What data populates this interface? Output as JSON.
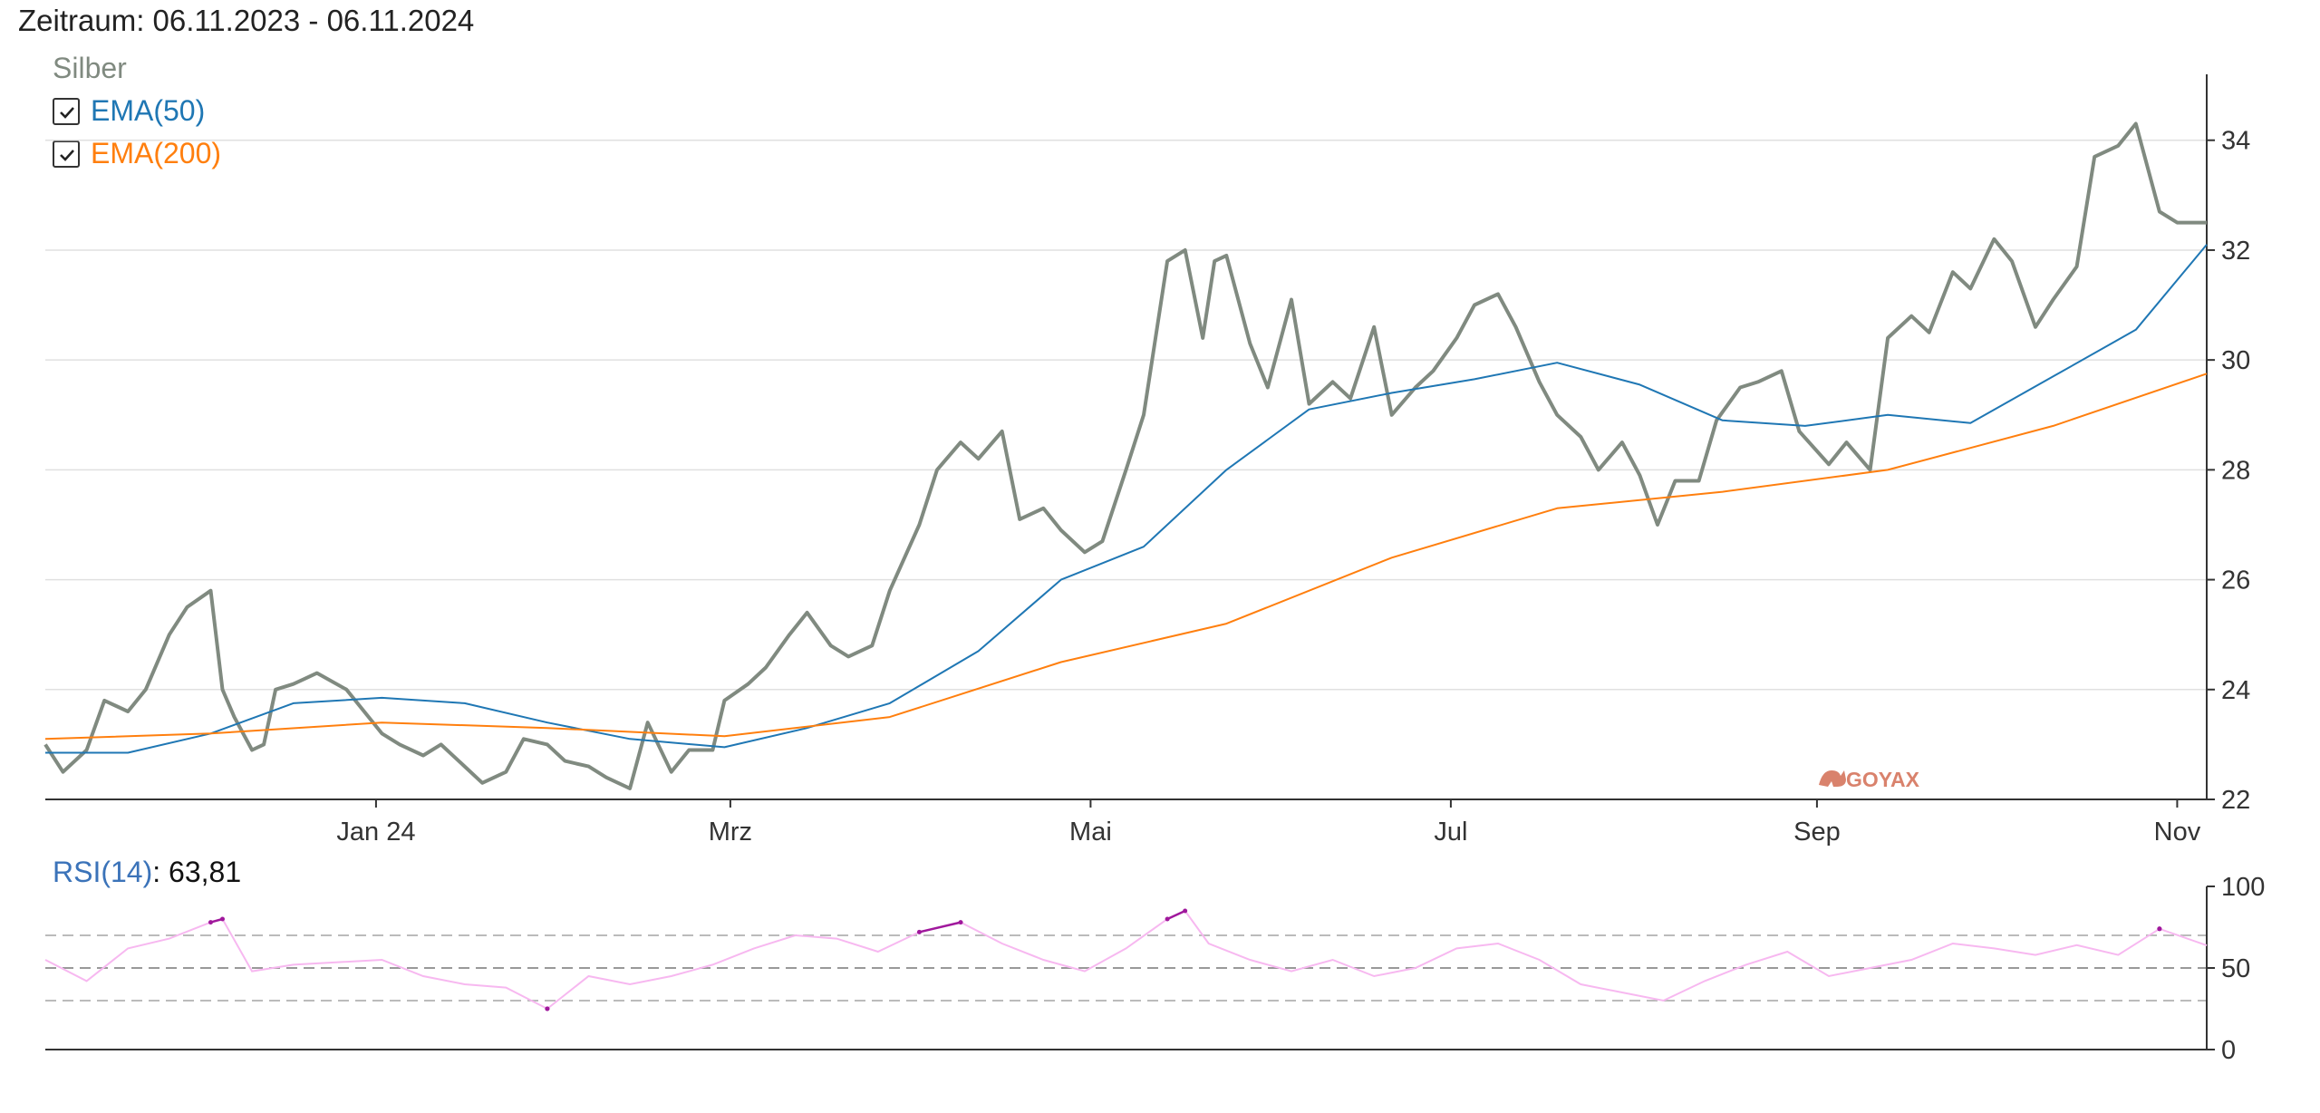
{
  "header": {
    "period": "Zeitraum: 06.11.2023 - 06.11.2024"
  },
  "legend": {
    "series_name": "Silber",
    "items": [
      {
        "label": "EMA(50)",
        "checked": true,
        "color": "#1f77b4"
      },
      {
        "label": "EMA(200)",
        "checked": true,
        "color": "#ff7f0e"
      }
    ]
  },
  "watermark": "GOYAX",
  "rsi": {
    "label": "RSI(14)",
    "value": ": 63,81"
  },
  "colors": {
    "price": "#808a80",
    "ema50": "#1f77b4",
    "ema200": "#ff7f0e",
    "rsi": "#f7b8f0",
    "rsi_extreme": "#a0189c",
    "grid": "#e0e0e0"
  },
  "chart_data": [
    {
      "type": "line",
      "title": "",
      "x_start": "2023-11-06",
      "x_end": "2024-11-06",
      "x_ticks": [
        {
          "date": "2024-01-01",
          "label": "Jan 24"
        },
        {
          "date": "2024-03-01",
          "label": "Mrz"
        },
        {
          "date": "2024-05-01",
          "label": "Mai"
        },
        {
          "date": "2024-07-01",
          "label": "Jul"
        },
        {
          "date": "2024-09-01",
          "label": "Sep"
        },
        {
          "date": "2024-11-01",
          "label": "Nov"
        }
      ],
      "ylim": [
        22,
        35.2
      ],
      "y_ticks": [
        22,
        24,
        26,
        28,
        30,
        32,
        34
      ],
      "grid": true,
      "series": [
        {
          "name": "Silber",
          "x": [
            "2023-11-06",
            "2023-11-09",
            "2023-11-13",
            "2023-11-16",
            "2023-11-20",
            "2023-11-23",
            "2023-11-27",
            "2023-11-30",
            "2023-12-04",
            "2023-12-06",
            "2023-12-08",
            "2023-12-11",
            "2023-12-13",
            "2023-12-15",
            "2023-12-18",
            "2023-12-20",
            "2023-12-22",
            "2023-12-27",
            "2024-01-02",
            "2024-01-05",
            "2024-01-09",
            "2024-01-12",
            "2024-01-16",
            "2024-01-19",
            "2024-01-23",
            "2024-01-26",
            "2024-01-30",
            "2024-02-02",
            "2024-02-06",
            "2024-02-09",
            "2024-02-13",
            "2024-02-16",
            "2024-02-20",
            "2024-02-23",
            "2024-02-27",
            "2024-02-29",
            "2024-03-04",
            "2024-03-07",
            "2024-03-11",
            "2024-03-14",
            "2024-03-18",
            "2024-03-21",
            "2024-03-25",
            "2024-03-28",
            "2024-04-02",
            "2024-04-05",
            "2024-04-09",
            "2024-04-12",
            "2024-04-16",
            "2024-04-19",
            "2024-04-23",
            "2024-04-26",
            "2024-04-30",
            "2024-05-03",
            "2024-05-07",
            "2024-05-10",
            "2024-05-14",
            "2024-05-17",
            "2024-05-20",
            "2024-05-22",
            "2024-05-24",
            "2024-05-28",
            "2024-05-31",
            "2024-06-04",
            "2024-06-07",
            "2024-06-11",
            "2024-06-14",
            "2024-06-18",
            "2024-06-21",
            "2024-06-25",
            "2024-06-28",
            "2024-07-02",
            "2024-07-05",
            "2024-07-09",
            "2024-07-12",
            "2024-07-16",
            "2024-07-19",
            "2024-07-23",
            "2024-07-26",
            "2024-07-30",
            "2024-08-02",
            "2024-08-05",
            "2024-08-08",
            "2024-08-12",
            "2024-08-15",
            "2024-08-19",
            "2024-08-22",
            "2024-08-26",
            "2024-08-29",
            "2024-09-03",
            "2024-09-06",
            "2024-09-10",
            "2024-09-13",
            "2024-09-17",
            "2024-09-20",
            "2024-09-24",
            "2024-09-27",
            "2024-10-01",
            "2024-10-04",
            "2024-10-08",
            "2024-10-11",
            "2024-10-15",
            "2024-10-18",
            "2024-10-22",
            "2024-10-25",
            "2024-10-29",
            "2024-11-01",
            "2024-11-04",
            "2024-11-06"
          ],
          "values": [
            23.0,
            22.5,
            22.9,
            23.8,
            23.6,
            24.0,
            25.0,
            25.5,
            25.8,
            24.0,
            23.5,
            22.9,
            23.0,
            24.0,
            24.1,
            24.2,
            24.3,
            24.0,
            23.2,
            23.0,
            22.8,
            23.0,
            22.6,
            22.3,
            22.5,
            23.1,
            23.0,
            22.7,
            22.6,
            22.4,
            22.2,
            23.4,
            22.5,
            22.9,
            22.9,
            23.8,
            24.1,
            24.4,
            25.0,
            25.4,
            24.8,
            24.6,
            24.8,
            25.8,
            27.0,
            28.0,
            28.5,
            28.2,
            28.7,
            27.1,
            27.3,
            26.9,
            26.5,
            26.7,
            28.0,
            29.0,
            31.8,
            32.0,
            30.4,
            31.8,
            31.9,
            30.3,
            29.5,
            31.1,
            29.2,
            29.6,
            29.3,
            30.6,
            29.0,
            29.5,
            29.8,
            30.4,
            31.0,
            31.2,
            30.6,
            29.6,
            29.0,
            28.6,
            28.0,
            28.5,
            27.9,
            27.0,
            27.8,
            27.8,
            28.9,
            29.5,
            29.6,
            29.8,
            28.7,
            28.1,
            28.5,
            28.0,
            30.4,
            30.8,
            30.5,
            31.6,
            31.3,
            32.2,
            31.8,
            30.6,
            31.1,
            31.7,
            33.7,
            33.9,
            34.3,
            32.7,
            32.5,
            32.5,
            32.5
          ]
        },
        {
          "name": "EMA(50)",
          "x": [
            "2023-11-06",
            "2023-11-20",
            "2023-12-04",
            "2023-12-18",
            "2024-01-02",
            "2024-01-16",
            "2024-01-30",
            "2024-02-13",
            "2024-02-29",
            "2024-03-14",
            "2024-03-28",
            "2024-04-12",
            "2024-04-26",
            "2024-05-10",
            "2024-05-24",
            "2024-06-07",
            "2024-06-21",
            "2024-07-05",
            "2024-07-19",
            "2024-08-02",
            "2024-08-16",
            "2024-08-30",
            "2024-09-13",
            "2024-09-27",
            "2024-10-11",
            "2024-10-25",
            "2024-11-06"
          ],
          "values": [
            22.85,
            22.85,
            23.2,
            23.75,
            23.85,
            23.75,
            23.4,
            23.1,
            22.95,
            23.3,
            23.75,
            24.7,
            26.0,
            26.6,
            28.0,
            29.1,
            29.4,
            29.65,
            29.95,
            29.55,
            28.9,
            28.8,
            29.0,
            28.85,
            29.7,
            30.55,
            32.1
          ]
        },
        {
          "name": "EMA(200)",
          "x": [
            "2023-11-06",
            "2023-12-04",
            "2024-01-02",
            "2024-01-30",
            "2024-02-29",
            "2024-03-28",
            "2024-04-26",
            "2024-05-24",
            "2024-06-21",
            "2024-07-19",
            "2024-08-16",
            "2024-09-13",
            "2024-10-11",
            "2024-11-06"
          ],
          "values": [
            23.1,
            23.2,
            23.4,
            23.3,
            23.15,
            23.5,
            24.5,
            25.2,
            26.4,
            27.3,
            27.6,
            28.0,
            28.8,
            29.75
          ]
        }
      ]
    },
    {
      "type": "line",
      "title": "",
      "ylim": [
        0,
        100
      ],
      "y_ticks": [
        0,
        50,
        100
      ],
      "reference_lines": [
        30,
        50,
        70
      ],
      "series": [
        {
          "name": "RSI(14)",
          "x": [
            "2023-11-06",
            "2023-11-13",
            "2023-11-20",
            "2023-11-27",
            "2023-12-04",
            "2023-12-06",
            "2023-12-11",
            "2023-12-18",
            "2024-01-02",
            "2024-01-09",
            "2024-01-16",
            "2024-01-23",
            "2024-01-30",
            "2024-02-06",
            "2024-02-13",
            "2024-02-20",
            "2024-02-27",
            "2024-03-05",
            "2024-03-12",
            "2024-03-19",
            "2024-03-26",
            "2024-04-02",
            "2024-04-09",
            "2024-04-16",
            "2024-04-23",
            "2024-04-30",
            "2024-05-07",
            "2024-05-14",
            "2024-05-17",
            "2024-05-21",
            "2024-05-28",
            "2024-06-04",
            "2024-06-11",
            "2024-06-18",
            "2024-06-25",
            "2024-07-02",
            "2024-07-09",
            "2024-07-16",
            "2024-07-23",
            "2024-07-30",
            "2024-08-06",
            "2024-08-13",
            "2024-08-20",
            "2024-08-27",
            "2024-09-03",
            "2024-09-10",
            "2024-09-17",
            "2024-09-24",
            "2024-10-01",
            "2024-10-08",
            "2024-10-15",
            "2024-10-22",
            "2024-10-29",
            "2024-11-06"
          ],
          "values": [
            55,
            42,
            62,
            68,
            78,
            80,
            48,
            52,
            55,
            45,
            40,
            38,
            25,
            45,
            40,
            45,
            52,
            62,
            70,
            68,
            60,
            72,
            78,
            65,
            55,
            48,
            62,
            80,
            85,
            65,
            55,
            48,
            55,
            45,
            50,
            62,
            65,
            55,
            40,
            35,
            30,
            42,
            52,
            60,
            45,
            50,
            55,
            65,
            62,
            58,
            64,
            58,
            74,
            63.81
          ]
        }
      ]
    }
  ]
}
